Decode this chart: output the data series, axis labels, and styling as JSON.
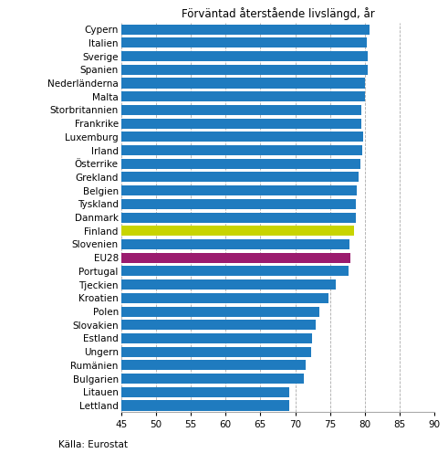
{
  "title": "Förväntad återstående livslängd, år",
  "source": "Källa: Eurostat",
  "categories": [
    "Cypern",
    "Italien",
    "Sverige",
    "Spanien",
    "Nederländerna",
    "Malta",
    "Storbritannien",
    "Frankrike",
    "Luxemburg",
    "Irland",
    "Österrike",
    "Grekland",
    "Belgien",
    "Tyskland",
    "Danmark",
    "Finland",
    "Slovenien",
    "EU28",
    "Portugal",
    "Tjeckien",
    "Kroatien",
    "Polen",
    "Slovakien",
    "Estland",
    "Ungern",
    "Rumänien",
    "Bulgarien",
    "Litauen",
    "Lettland"
  ],
  "values": [
    80.7,
    80.3,
    80.4,
    80.4,
    80.0,
    80.0,
    79.5,
    79.5,
    79.7,
    79.6,
    79.4,
    79.1,
    78.8,
    78.7,
    78.7,
    78.4,
    77.8,
    77.9,
    77.6,
    75.8,
    74.8,
    73.5,
    73.0,
    72.4,
    72.3,
    71.5,
    71.2,
    69.2,
    69.1
  ],
  "colors": [
    "#1f7bbf",
    "#1f7bbf",
    "#1f7bbf",
    "#1f7bbf",
    "#1f7bbf",
    "#1f7bbf",
    "#1f7bbf",
    "#1f7bbf",
    "#1f7bbf",
    "#1f7bbf",
    "#1f7bbf",
    "#1f7bbf",
    "#1f7bbf",
    "#1f7bbf",
    "#1f7bbf",
    "#c8d400",
    "#1f7bbf",
    "#9b1b6e",
    "#1f7bbf",
    "#1f7bbf",
    "#1f7bbf",
    "#1f7bbf",
    "#1f7bbf",
    "#1f7bbf",
    "#1f7bbf",
    "#1f7bbf",
    "#1f7bbf",
    "#1f7bbf",
    "#1f7bbf"
  ],
  "xlim": [
    45,
    90
  ],
  "xticks": [
    45,
    50,
    55,
    60,
    65,
    70,
    75,
    80,
    85,
    90
  ],
  "bar_height": 0.75,
  "grid_color": "#aaaaaa"
}
